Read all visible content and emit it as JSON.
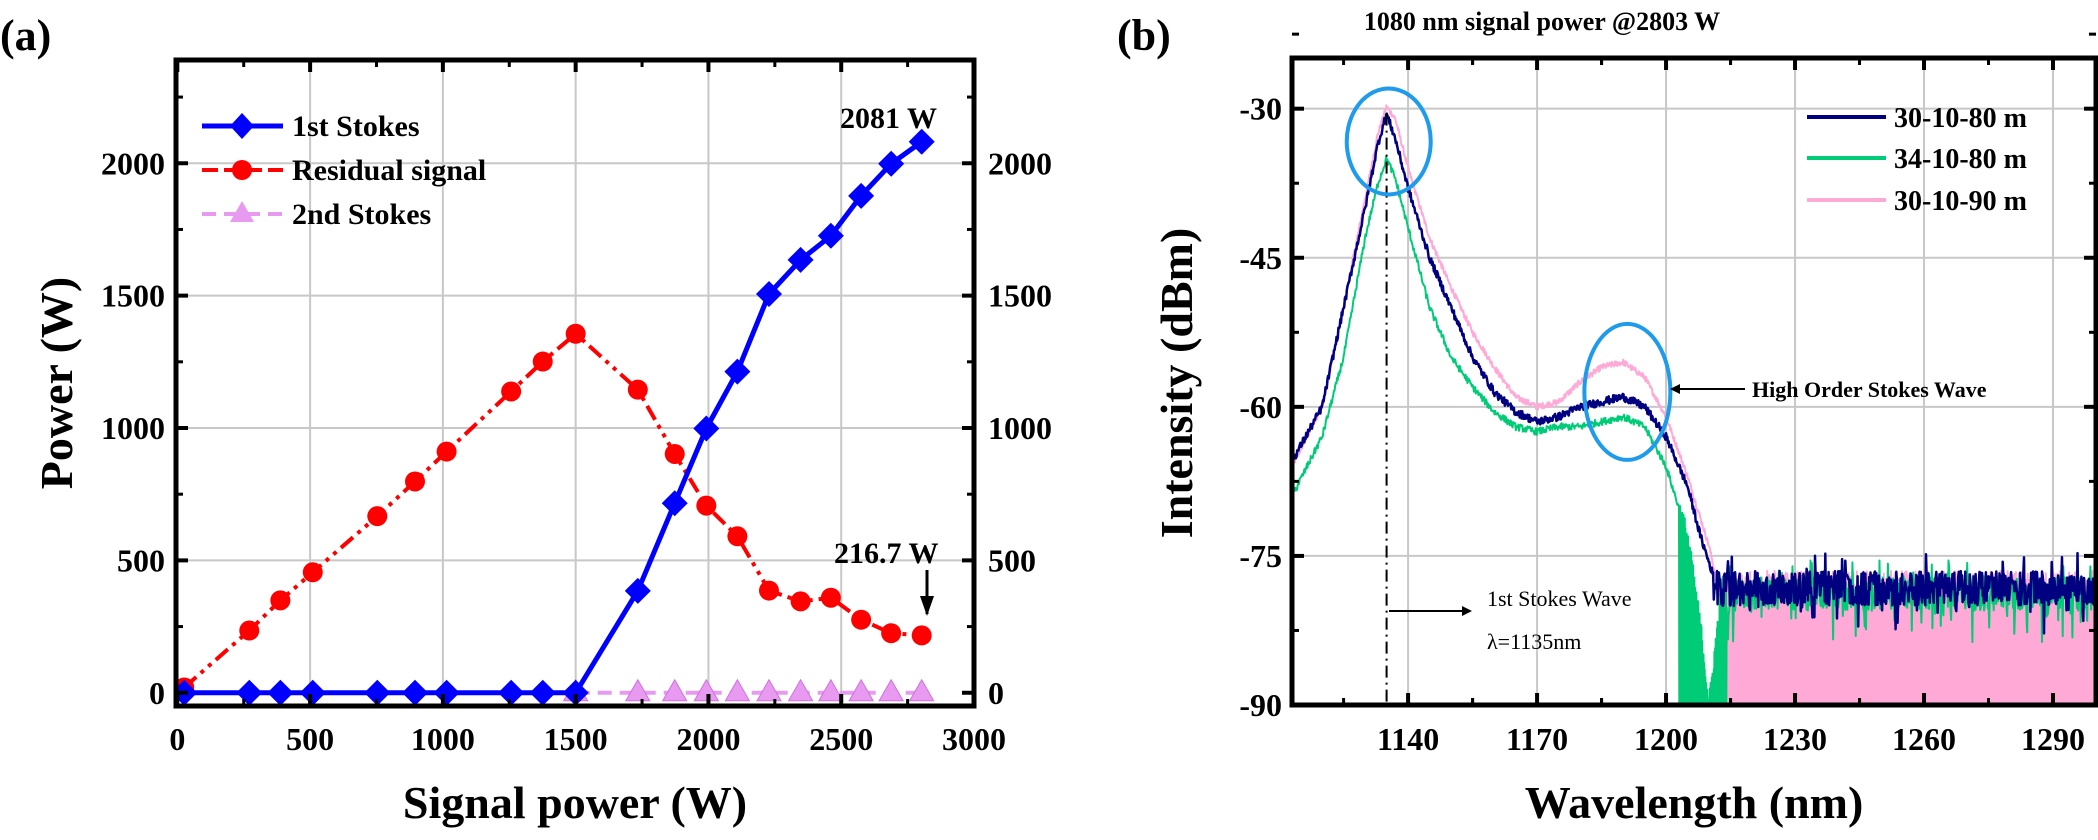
{
  "chart_data": [
    {
      "panel_label": "(a)",
      "type": "line",
      "xlabel": "Signal power (W)",
      "ylabel": "Power (W)",
      "xlim": [
        -5,
        3000
      ],
      "ylim": [
        -50,
        2390
      ],
      "x_ticks": [
        "0",
        "500",
        "1000",
        "1500",
        "2000",
        "2500",
        "3000"
      ],
      "y_ticks": [
        "0",
        "500",
        "1000",
        "1500",
        "2000"
      ],
      "y_ticks_right": [
        "0",
        "500",
        "1000",
        "1500",
        "2000"
      ],
      "grid": true,
      "legend_position": "top-left",
      "series": [
        {
          "name": "1st Stokes",
          "color": "#0000ff",
          "marker": "diamond",
          "line": "solid",
          "x": [
            26,
            271,
            388,
            510,
            753,
            895,
            1014,
            1257,
            1376,
            1500,
            1734,
            1873,
            1992,
            2109,
            2228,
            2347,
            2461,
            2575,
            2688,
            2803
          ],
          "y": [
            0,
            0,
            0,
            0,
            0,
            0,
            0,
            0,
            0,
            0,
            385,
            716,
            998,
            1213,
            1506,
            1635,
            1726,
            1877,
            1998,
            2081
          ]
        },
        {
          "name": "Residual signal",
          "color": "#ff0000",
          "marker": "circle",
          "line": "dash-dot-dot",
          "x": [
            26,
            271,
            388,
            510,
            753,
            895,
            1014,
            1257,
            1376,
            1500,
            1734,
            1873,
            1992,
            2109,
            2228,
            2347,
            2461,
            2575,
            2688,
            2803
          ],
          "y": [
            20,
            235,
            349,
            455,
            667,
            798,
            911,
            1138,
            1251,
            1356,
            1145,
            902,
            707,
            591,
            386,
            345,
            359,
            276,
            225,
            216.7
          ]
        },
        {
          "name": "2nd Stokes",
          "color": "#e79af0",
          "marker": "triangle",
          "line": "dash",
          "x": [
            1500,
            1734,
            1873,
            1992,
            2109,
            2228,
            2347,
            2461,
            2575,
            2688,
            2803
          ],
          "y": [
            0,
            0,
            0,
            0,
            0,
            0,
            0,
            0,
            0,
            0,
            0
          ]
        }
      ],
      "annotations": {
        "max_stokes": "2081 W",
        "min_residual": "216.7 W"
      }
    },
    {
      "panel_label": "(b)",
      "type": "line",
      "title": "1080 nm signal power @2803 W",
      "xlabel": "Wavelength (nm)",
      "ylabel": "Intensity (dBm)",
      "xlim": [
        1113,
        1300
      ],
      "ylim": [
        -90,
        -24.9
      ],
      "x_ticks": [
        "1140",
        "1170",
        "1200",
        "1230",
        "1260",
        "1290"
      ],
      "y_ticks": [
        "-30",
        "-45",
        "-60",
        "-75",
        "-90"
      ],
      "grid": true,
      "legend_position": "top-right",
      "series": [
        {
          "name": "30-10-90 m",
          "color": "#ffaad6",
          "x": [
            1113,
            1120,
            1125,
            1130,
            1133,
            1135,
            1137,
            1140,
            1145,
            1150,
            1155,
            1160,
            1165,
            1170,
            1175,
            1180,
            1185,
            1190,
            1195,
            1200,
            1205,
            1210,
            1213,
            1300
          ],
          "y": [
            -66,
            -60,
            -50,
            -39,
            -32.5,
            -29.8,
            -31,
            -36,
            -43,
            -48,
            -52.5,
            -56,
            -59,
            -60,
            -59.5,
            -57.5,
            -56,
            -55.5,
            -57,
            -61,
            -67,
            -74,
            -80,
            -80
          ]
        },
        {
          "name": "34-10-80 m",
          "color": "#00cc77",
          "x": [
            1113,
            1120,
            1125,
            1130,
            1133,
            1135,
            1137,
            1140,
            1145,
            1150,
            1155,
            1160,
            1165,
            1170,
            1175,
            1180,
            1185,
            1190,
            1195,
            1200,
            1205,
            1208,
            1210,
            1213,
            1300
          ],
          "y": [
            -69,
            -63,
            -55,
            -43,
            -37.5,
            -35,
            -37,
            -42,
            -50,
            -55,
            -58,
            -60.5,
            -62,
            -62.5,
            -62,
            -62,
            -61.5,
            -61,
            -62,
            -66,
            -73,
            -82,
            -90,
            -78,
            -78
          ]
        },
        {
          "name": "30-10-80 m",
          "color": "#000080",
          "x": [
            1113,
            1120,
            1125,
            1130,
            1133,
            1135,
            1137,
            1140,
            1145,
            1150,
            1155,
            1160,
            1165,
            1170,
            1175,
            1180,
            1185,
            1190,
            1195,
            1200,
            1205,
            1208,
            1211,
            1300
          ],
          "y": [
            -65.5,
            -60,
            -50,
            -40,
            -33.5,
            -30.5,
            -33,
            -38,
            -45,
            -50,
            -55,
            -58.5,
            -60.5,
            -61.5,
            -61,
            -60,
            -59.5,
            -59,
            -60,
            -63,
            -68,
            -73,
            -77,
            -77.5
          ]
        }
      ],
      "legend_order": [
        "30-10-80 m",
        "34-10-80 m",
        "30-10-90 m"
      ],
      "annotations": {
        "high_order": "High Order Stokes Wave",
        "first_stokes": "1st Stokes Wave",
        "lambda": "λ=1135nm",
        "first_stokes_wavelength": 1135,
        "highlight_color": "#1e9bea"
      }
    }
  ]
}
